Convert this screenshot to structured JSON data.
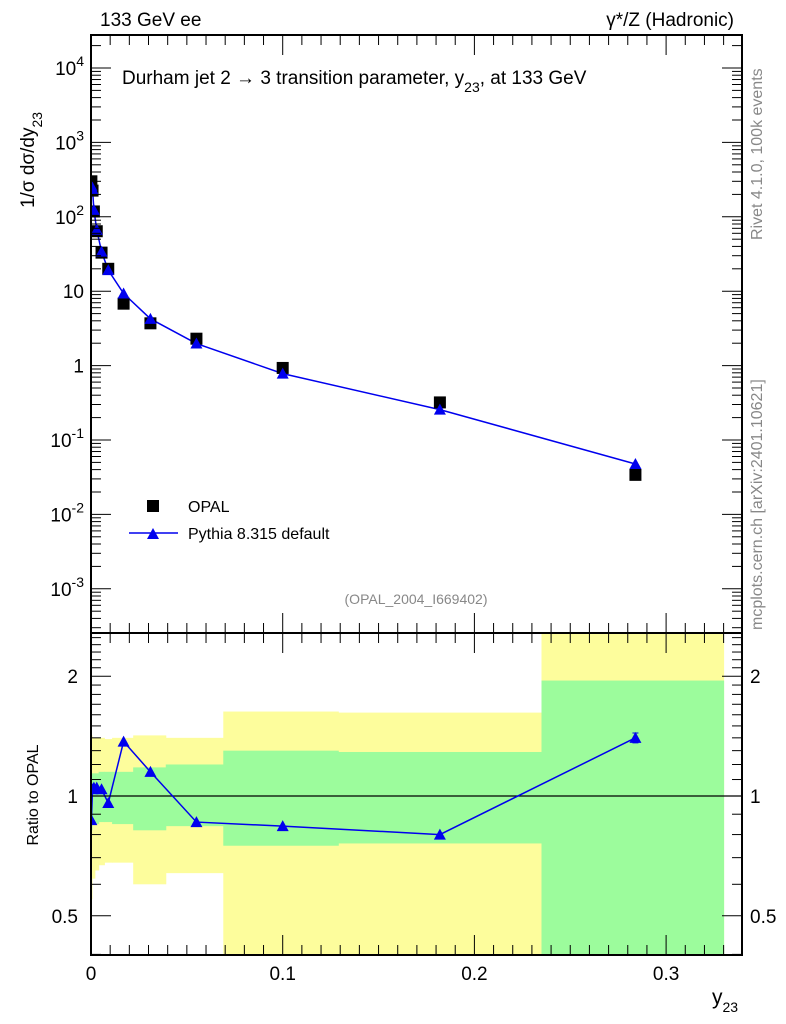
{
  "header": {
    "left": "133 GeV ee",
    "right": "γ*/Z (Hadronic)"
  },
  "side_text": {
    "rivet": "Rivet 4.1.0,  100k events",
    "mcplots": "mcplots.cern.ch [arXiv:2401.10621]"
  },
  "colors": {
    "data": "#000000",
    "mc": "#0000ee",
    "band_inner": "#9cfc9c",
    "band_outer": "#fdfd9c"
  },
  "chart_data": [
    {
      "type": "scatter",
      "title": "Durham jet 2 →  3 transition parameter, y",
      "title_sub": "23",
      "title_end": ", at 133 GeV",
      "analysis_id": "(OPAL_2004_I669402)",
      "ylabel": "1/σ  dσ/dy",
      "ylabel_sub": "23",
      "yscale": "log",
      "ylim": [
        0.00026,
        27000
      ],
      "xlim": [
        0,
        0.337
      ],
      "yticks": [
        "10^-3",
        "10^-2",
        "10^-1",
        "1",
        "10",
        "10^2",
        "10^3",
        "10^4"
      ],
      "ytick_values": [
        0.001,
        0.01,
        0.1,
        1,
        10,
        100,
        1000,
        10000
      ],
      "x": [
        0.0002,
        0.0008,
        0.0015,
        0.003,
        0.0055,
        0.009,
        0.017,
        0.031,
        0.055,
        0.1,
        0.182,
        0.284
      ],
      "series": [
        {
          "name": "OPAL",
          "marker": "square",
          "values": [
            300,
            225,
            118,
            64,
            33,
            20,
            6.8,
            3.7,
            2.3,
            0.93,
            0.32,
            0.034
          ]
        },
        {
          "name": "Pythia 8.315 default",
          "marker": "triangle",
          "values": [
            261,
            234,
            124,
            67,
            34,
            19.2,
            9.3,
            4.25,
            1.98,
            0.78,
            0.256,
            0.0476
          ]
        }
      ],
      "legend": [
        "OPAL",
        "Pythia 8.315 default"
      ],
      "legend_position": "bottom-left"
    },
    {
      "type": "line",
      "ylabel": "Ratio to OPAL",
      "xlabel": "y",
      "xlabel_sub": "23",
      "yscale": "log",
      "ylim": [
        0.397,
        2.55
      ],
      "xlim": [
        0,
        0.337
      ],
      "xticks": [
        "0",
        "0.1",
        "0.2",
        "0.3"
      ],
      "xtick_values": [
        0,
        0.1,
        0.2,
        0.3
      ],
      "yticks": [
        "0.5",
        "1",
        "2"
      ],
      "ytick_values": [
        0.5,
        1,
        2
      ],
      "bin_edges": [
        0,
        0.0005,
        0.001,
        0.002,
        0.004,
        0.007,
        0.011,
        0.022,
        0.039,
        0.069,
        0.129,
        0.235,
        0.33
      ],
      "band_inner": [
        [
          0.82,
          1.12
        ],
        [
          0.85,
          1.14
        ],
        [
          0.85,
          1.14
        ],
        [
          0.85,
          1.14
        ],
        [
          0.86,
          1.15
        ],
        [
          0.86,
          1.15
        ],
        [
          0.85,
          1.15
        ],
        [
          0.82,
          1.18
        ],
        [
          0.84,
          1.2
        ],
        [
          0.75,
          1.3
        ],
        [
          0.76,
          1.29
        ],
        [
          0.3,
          1.95
        ]
      ],
      "band_outer": [
        [
          0.55,
          1.42
        ],
        [
          0.62,
          1.4
        ],
        [
          0.62,
          1.4
        ],
        [
          0.65,
          1.4
        ],
        [
          0.67,
          1.4
        ],
        [
          0.68,
          1.39
        ],
        [
          0.68,
          1.4
        ],
        [
          0.6,
          1.42
        ],
        [
          0.64,
          1.4
        ],
        [
          0.3,
          1.63
        ],
        [
          0.38,
          1.62
        ],
        [
          0.3,
          2.8
        ]
      ],
      "x": [
        0.0002,
        0.0008,
        0.0015,
        0.003,
        0.0055,
        0.009,
        0.017,
        0.031,
        0.055,
        0.1,
        0.182,
        0.284
      ],
      "ratio": [
        0.87,
        1.04,
        1.05,
        1.05,
        1.04,
        0.96,
        1.37,
        1.15,
        0.86,
        0.84,
        0.8,
        1.4
      ],
      "ratio_err": [
        0,
        0,
        0,
        0,
        0,
        0,
        0,
        0,
        0,
        0,
        0,
        0.04
      ]
    }
  ]
}
